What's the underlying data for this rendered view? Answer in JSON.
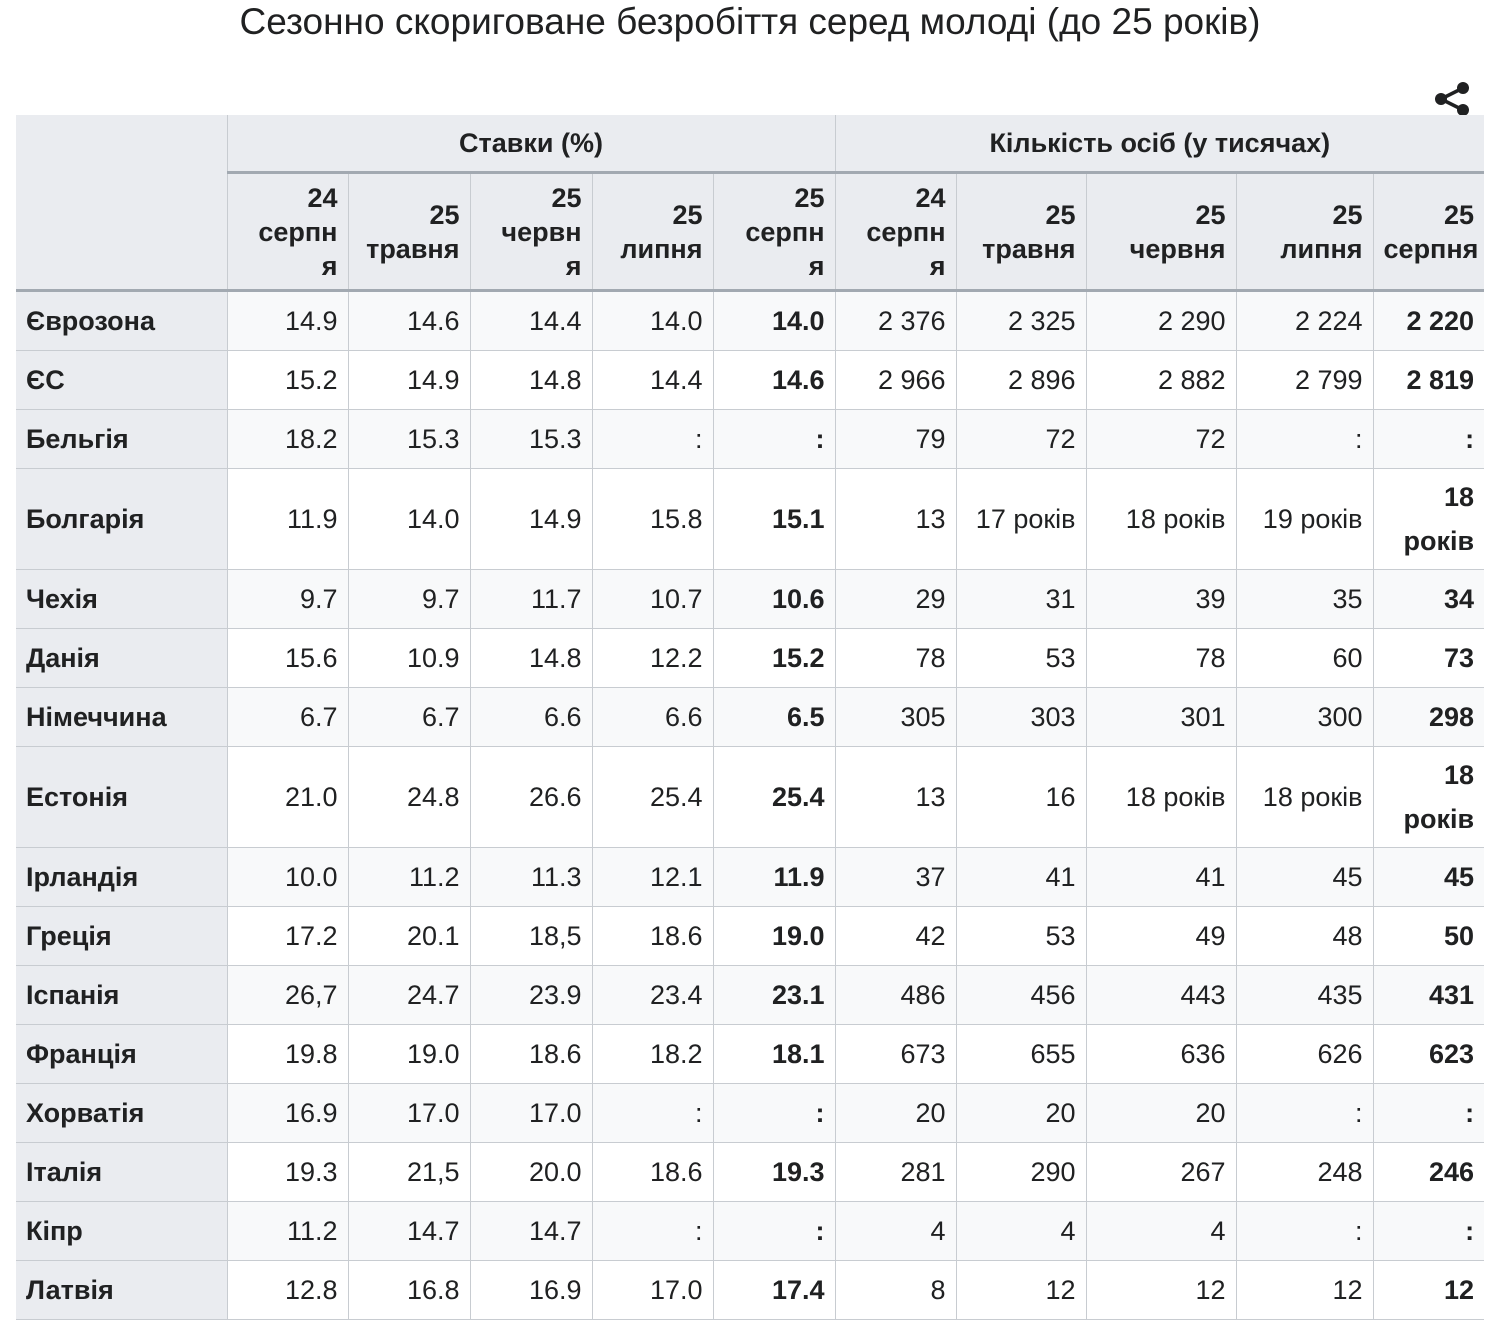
{
  "title": "Сезонно скориговане безробіття серед молоді (до 25 років)",
  "icons": {
    "share": "share-icon"
  },
  "table": {
    "group_headers": [
      "Ставки (%)",
      "Кількість осіб (у тисячах)"
    ],
    "col_headers": [
      "24 серпн я",
      "25 травня",
      "25 червн я",
      "25 липня",
      "25 серпн я",
      "24 серпн я",
      "25 травня",
      "25 червня",
      "25 липня",
      "25 серпня"
    ],
    "rows": [
      {
        "country": "Єврозона",
        "values": [
          "14.9",
          "14.6",
          "14.4",
          "14.0",
          "14.0",
          "2 376",
          "2 325",
          "2 290",
          "2 224",
          "2 220"
        ]
      },
      {
        "country": "ЄС",
        "values": [
          "15.2",
          "14.9",
          "14.8",
          "14.4",
          "14.6",
          "2 966",
          "2 896",
          "2 882",
          "2 799",
          "2 819"
        ]
      },
      {
        "country": "Бельгія",
        "values": [
          "18.2",
          "15.3",
          "15.3",
          ":",
          ":",
          "79",
          "72",
          "72",
          ":",
          ":"
        ]
      },
      {
        "country": "Болгарія",
        "tall": true,
        "values": [
          "11.9",
          "14.0",
          "14.9",
          "15.8",
          "15.1",
          "13",
          "17 років",
          "18 років",
          "19 років",
          "18 років"
        ]
      },
      {
        "country": "Чехія",
        "values": [
          "9.7",
          "9.7",
          "11.7",
          "10.7",
          "10.6",
          "29",
          "31",
          "39",
          "35",
          "34"
        ]
      },
      {
        "country": "Данія",
        "values": [
          "15.6",
          "10.9",
          "14.8",
          "12.2",
          "15.2",
          "78",
          "53",
          "78",
          "60",
          "73"
        ]
      },
      {
        "country": "Німеччина",
        "values": [
          "6.7",
          "6.7",
          "6.6",
          "6.6",
          "6.5",
          "305",
          "303",
          "301",
          "300",
          "298"
        ]
      },
      {
        "country": "Естонія",
        "tall": true,
        "values": [
          "21.0",
          "24.8",
          "26.6",
          "25.4",
          "25.4",
          "13",
          "16",
          "18 років",
          "18 років",
          "18 років"
        ]
      },
      {
        "country": "Ірландія",
        "values": [
          "10.0",
          "11.2",
          "11.3",
          "12.1",
          "11.9",
          "37",
          "41",
          "41",
          "45",
          "45"
        ]
      },
      {
        "country": "Греція",
        "values": [
          "17.2",
          "20.1",
          "18,5",
          "18.6",
          "19.0",
          "42",
          "53",
          "49",
          "48",
          "50"
        ]
      },
      {
        "country": "Іспанія",
        "values": [
          "26,7",
          "24.7",
          "23.9",
          "23.4",
          "23.1",
          "486",
          "456",
          "443",
          "435",
          "431"
        ]
      },
      {
        "country": "Франція",
        "values": [
          "19.8",
          "19.0",
          "18.6",
          "18.2",
          "18.1",
          "673",
          "655",
          "636",
          "626",
          "623"
        ]
      },
      {
        "country": "Хорватія",
        "values": [
          "16.9",
          "17.0",
          "17.0",
          ":",
          ":",
          "20",
          "20",
          "20",
          ":",
          ":"
        ]
      },
      {
        "country": "Італія",
        "values": [
          "19.3",
          "21,5",
          "20.0",
          "18.6",
          "19.3",
          "281",
          "290",
          "267",
          "248",
          "246"
        ]
      },
      {
        "country": "Кіпр",
        "values": [
          "11.2",
          "14.7",
          "14.7",
          ":",
          ":",
          "4",
          "4",
          "4",
          ":",
          ":"
        ]
      },
      {
        "country": "Латвія",
        "values": [
          "12.8",
          "16.8",
          "16.9",
          "17.0",
          "17.4",
          "8",
          "12",
          "12",
          "12",
          "12"
        ]
      }
    ]
  }
}
